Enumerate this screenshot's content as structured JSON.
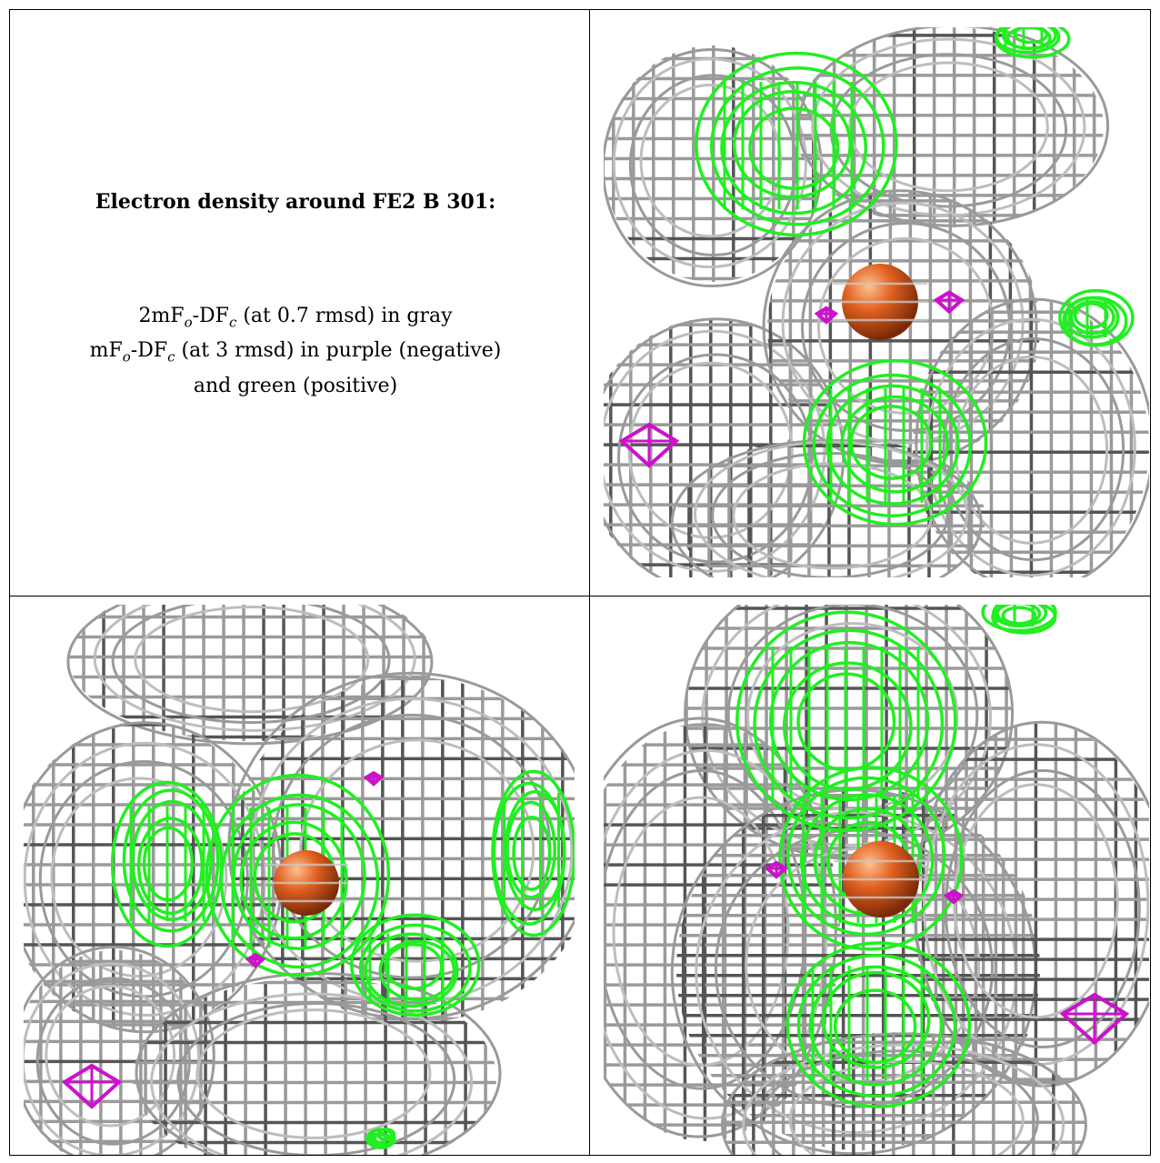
{
  "caption": {
    "title": "Electron density around FE2 B 301:",
    "line1_prefix": "2mF",
    "line1_sub1": "o",
    "line1_mid": "-DF",
    "line1_sub2": "c",
    "line1_suffix": " (at 0.7 rmsd) in gray",
    "line2_prefix": "mF",
    "line2_sub1": "o",
    "line2_mid": "-DF",
    "line2_sub2": "c",
    "line2_suffix": " (at 3 rmsd) in purple (negative)",
    "line3": "and green (positive)"
  },
  "colors": {
    "gray_mesh": "#9a9a9a",
    "dark_mesh": "#555555",
    "green_mesh": "#22ee22",
    "purple_mesh": "#cc11cc",
    "atom": "#e06020"
  },
  "panels": [
    {
      "name": "top-right-view"
    },
    {
      "name": "bottom-left-view"
    },
    {
      "name": "bottom-right-view"
    }
  ]
}
